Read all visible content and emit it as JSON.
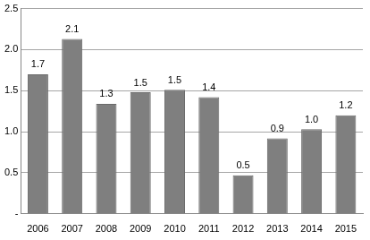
{
  "chart_data": {
    "type": "bar",
    "categories": [
      "2006",
      "2007",
      "2008",
      "2009",
      "2010",
      "2011",
      "2012",
      "2013",
      "2014",
      "2015"
    ],
    "values": [
      1.7,
      2.13,
      1.34,
      1.48,
      1.51,
      1.42,
      0.47,
      0.92,
      1.03,
      1.2
    ],
    "value_labels": [
      "1.7",
      "2.1",
      "1.3",
      "1.5",
      "1.5",
      "1.4",
      "0.5",
      "0.9",
      "1.0",
      "1.2"
    ],
    "color": "#7f7f7f",
    "ylim": [
      0,
      2.5
    ],
    "yticks": [
      {
        "value": 0,
        "label": "-"
      },
      0.5,
      {
        "value": 1,
        "label": "1.0"
      },
      1.5,
      {
        "value": 2,
        "label": "2.0"
      },
      2.5
    ],
    "grid": true,
    "data_labels": true
  }
}
